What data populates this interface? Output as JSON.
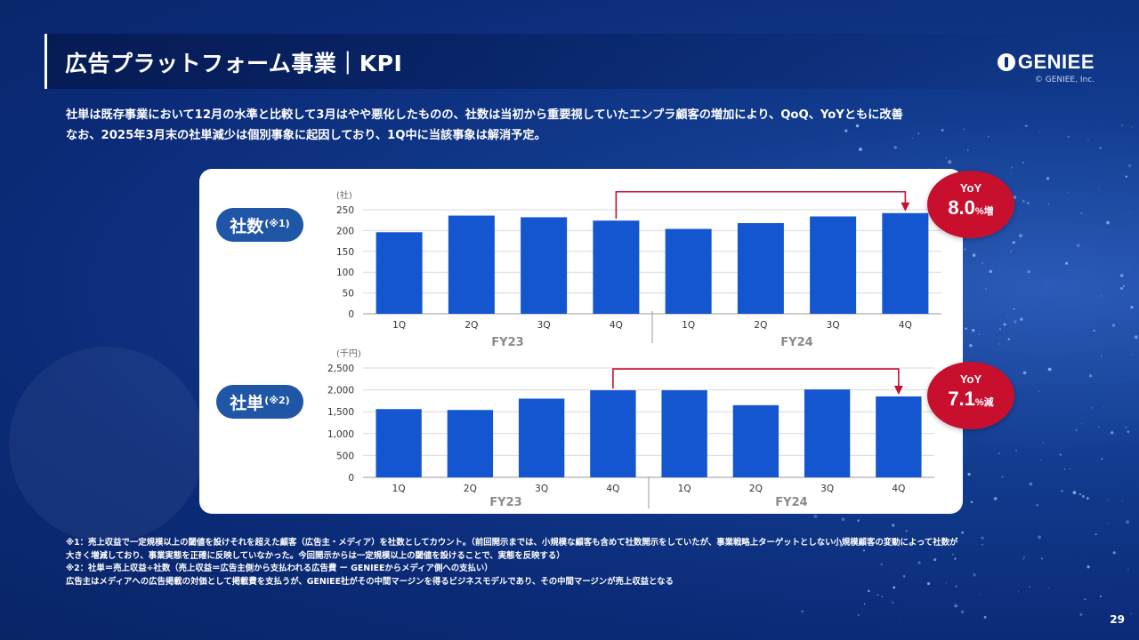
{
  "header": {
    "title": "広告プラットフォーム事業｜KPI",
    "logo_text": "GENIEE",
    "logo_copyright": "© GENIEE, Inc."
  },
  "lead": {
    "line1": "社単は既存事業において12月の水準と比較して3月はやや悪化したものの、社数は当初から重要視していたエンプラ顧客の増加により、QoQ、YoYともに改善",
    "line2": "なお、2025年3月末の社単減少は個別事象に起因しており、1Q中に当該事象は解消予定。"
  },
  "chart_data": [
    {
      "type": "bar",
      "label": "社数",
      "label_note": "(※1)",
      "unit": "(社)",
      "categories": [
        "1Q",
        "2Q",
        "3Q",
        "4Q",
        "1Q",
        "2Q",
        "3Q",
        "4Q"
      ],
      "groups": [
        {
          "name": "FY23",
          "count": 4
        },
        {
          "name": "FY24",
          "count": 4
        }
      ],
      "values": [
        196,
        236,
        232,
        224,
        204,
        218,
        234,
        242
      ],
      "ylim": [
        0,
        250
      ],
      "yticks": [
        "0",
        "50",
        "100",
        "150",
        "200",
        "250"
      ],
      "grid": true,
      "bar_color": "#1455d0",
      "comparison": {
        "from_index": 3,
        "to_index": 7,
        "badge_title": "YoY",
        "badge_value": "8.0",
        "badge_unit": "%増"
      }
    },
    {
      "type": "bar",
      "label": "社単",
      "label_note": "(※2)",
      "unit": "(千円)",
      "categories": [
        "1Q",
        "2Q",
        "3Q",
        "4Q",
        "1Q",
        "2Q",
        "3Q",
        "4Q"
      ],
      "groups": [
        {
          "name": "FY23",
          "count": 4
        },
        {
          "name": "FY24",
          "count": 4
        }
      ],
      "values": [
        1560,
        1540,
        1800,
        1990,
        1990,
        1650,
        2010,
        1850
      ],
      "ylim": [
        0,
        2500
      ],
      "yticks": [
        "0",
        "500",
        "1,000",
        "1,500",
        "2,000",
        "2,500"
      ],
      "grid": true,
      "bar_color": "#1455d0",
      "comparison": {
        "from_index": 3,
        "to_index": 7,
        "badge_title": "YoY",
        "badge_value": "7.1",
        "badge_unit": "%減"
      }
    }
  ],
  "notes": {
    "n1a": "※1：売上収益で一定規模以上の閾値を設けそれを超えた顧客（広告主・メディア）を社数としてカウント。（前回開示までは、小規模な顧客も含めて社数開示をしていたが、事業戦略上ターゲットとしない小規模顧客の変動によって社数が",
    "n1b": "大きく増減しており、事業実態を正確に反映していなかった。今回開示からは一定規模以上の閾値を設けることで、実態を反映する）",
    "n2": "※2：社単＝売上収益÷社数（売上収益＝広告主側から支払われる広告費 ー GENIEEからメディア側への支払い）",
    "n3": "広告主はメディアへの広告掲載の対価として掲載費を支払うが、GENIEE社がその中間マージンを得るビジネスモデルであり、その中間マージンが売上収益となる"
  },
  "page_number": "29",
  "colors": {
    "accent_red": "#c8102e",
    "pill_blue": "#1f56a6",
    "bar_blue": "#1455d0",
    "background_navy": "#0b2b78"
  }
}
